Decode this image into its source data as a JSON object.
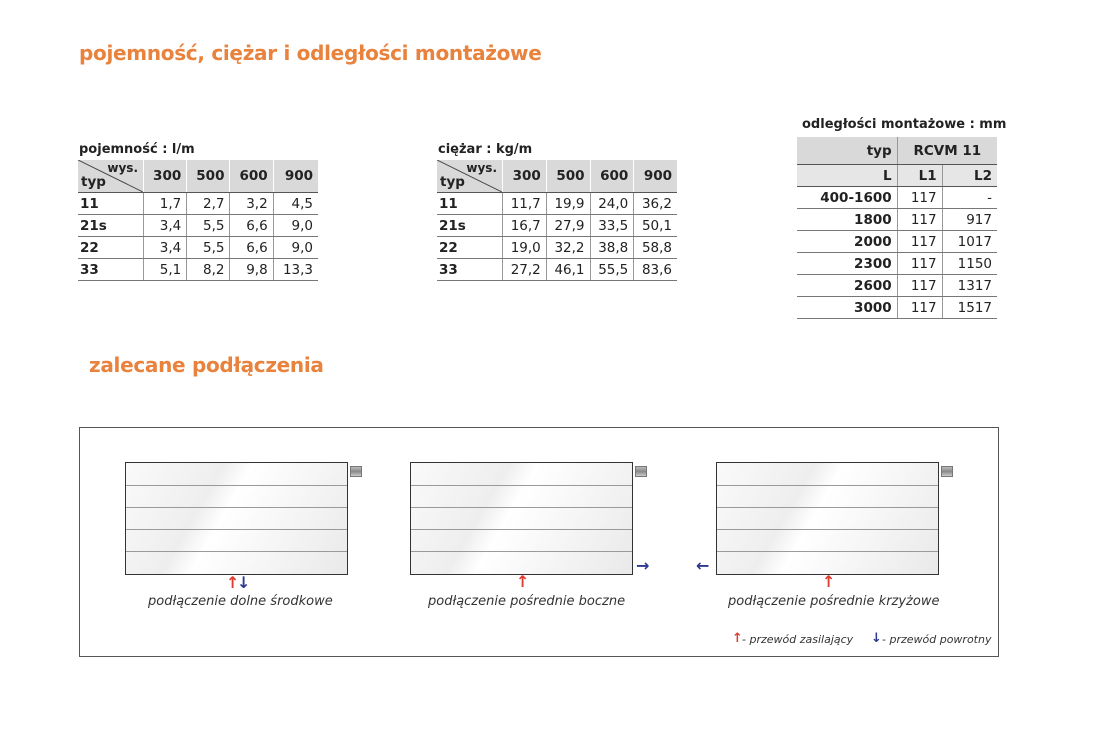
{
  "headings": {
    "main": "pojemność, ciężar i odległości montażowe",
    "connections": "zalecane podłączenia"
  },
  "capacity_table": {
    "title": "pojemność : l/m",
    "corner_top": "wys.",
    "corner_bottom": "typ",
    "columns": [
      "300",
      "500",
      "600",
      "900"
    ],
    "rows": [
      {
        "typ": "11",
        "values": [
          "1,7",
          "2,7",
          "3,2",
          "4,5"
        ]
      },
      {
        "typ": "21s",
        "values": [
          "3,4",
          "5,5",
          "6,6",
          "9,0"
        ]
      },
      {
        "typ": "22",
        "values": [
          "3,4",
          "5,5",
          "6,6",
          "9,0"
        ]
      },
      {
        "typ": "33",
        "values": [
          "5,1",
          "8,2",
          "9,8",
          "13,3"
        ]
      }
    ]
  },
  "weight_table": {
    "title": "ciężar : kg/m",
    "corner_top": "wys.",
    "corner_bottom": "typ",
    "columns": [
      "300",
      "500",
      "600",
      "900"
    ],
    "rows": [
      {
        "typ": "11",
        "values": [
          "11,7",
          "19,9",
          "24,0",
          "36,2"
        ]
      },
      {
        "typ": "21s",
        "values": [
          "16,7",
          "27,9",
          "33,5",
          "50,1"
        ]
      },
      {
        "typ": "22",
        "values": [
          "19,0",
          "32,2",
          "38,8",
          "58,8"
        ]
      },
      {
        "typ": "33",
        "values": [
          "27,2",
          "46,1",
          "55,5",
          "83,6"
        ]
      }
    ]
  },
  "distance_table": {
    "title": "odległości montażowe : mm",
    "typ_label": "typ",
    "model": "RCVM 11",
    "columns": [
      "L",
      "L1",
      "L2"
    ],
    "rows": [
      [
        "400-1600",
        "117",
        "-"
      ],
      [
        "1800",
        "117",
        "917"
      ],
      [
        "2000",
        "117",
        "1017"
      ],
      [
        "2300",
        "117",
        "1150"
      ],
      [
        "2600",
        "117",
        "1317"
      ],
      [
        "3000",
        "117",
        "1517"
      ]
    ]
  },
  "diagrams": [
    {
      "caption": "podłączenie dolne środkowe"
    },
    {
      "caption": "podłączenie pośrednie boczne"
    },
    {
      "caption": "podłączenie pośrednie krzyżowe"
    }
  ],
  "legend": {
    "supply": "- przewód zasilający",
    "return": "- przewód powrotny"
  },
  "colors": {
    "accent": "#e8823c",
    "supply": "#e03c31",
    "return": "#2b3990"
  }
}
